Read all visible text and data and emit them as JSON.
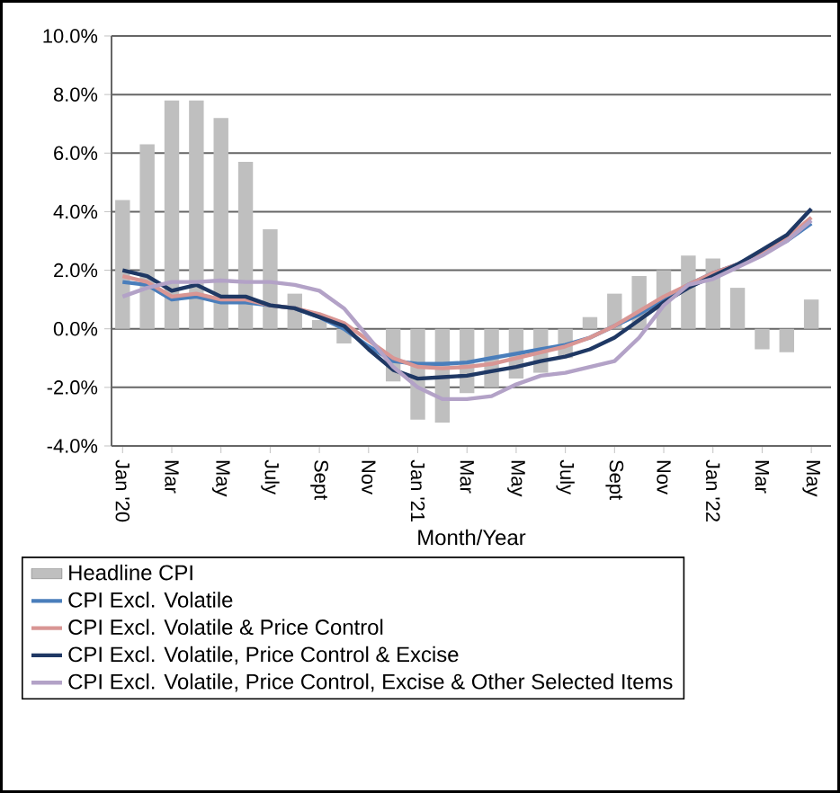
{
  "chart_data": {
    "type": "bar",
    "xlabel": "Month/Year",
    "categories": [
      "Jan '20",
      null,
      "Mar",
      null,
      "May",
      null,
      "July",
      null,
      "Sept",
      null,
      "Nov",
      null,
      "Jan '21",
      null,
      "Mar",
      null,
      "May",
      null,
      "July",
      null,
      "Sept",
      null,
      "Nov",
      null,
      "Jan '22",
      null,
      "Mar",
      null,
      "May"
    ],
    "series": [
      {
        "name": "Headline CPI",
        "color": "#bfbfbf",
        "values": [
          4.4,
          6.3,
          7.8,
          7.8,
          7.2,
          5.7,
          3.4,
          1.2,
          0.3,
          -0.5,
          null,
          -1.8,
          -3.1,
          -3.2,
          -2.2,
          -2.0,
          -1.7,
          -1.5,
          -1.0,
          0.4,
          1.2,
          1.8,
          2.0,
          2.5,
          2.4,
          1.4,
          -0.7,
          -0.8,
          1.0
        ]
      },
      {
        "name": "CPI Excl. Volatile",
        "type": "line",
        "color": "#4a7ebb",
        "values": [
          1.6,
          1.5,
          1.0,
          1.1,
          0.9,
          0.9,
          0.8,
          0.7,
          0.4,
          0.0,
          -0.6,
          -1.1,
          -1.2,
          -1.2,
          -1.15,
          -1.0,
          -0.85,
          -0.7,
          -0.55,
          -0.3,
          0.1,
          0.5,
          1.0,
          1.5,
          1.9,
          2.2,
          2.6,
          3.0,
          3.6
        ]
      },
      {
        "name": "CPI Excl. Volatile & Price Control",
        "type": "line",
        "color": "#d99694",
        "values": [
          1.8,
          1.6,
          1.1,
          1.2,
          1.0,
          1.0,
          0.8,
          0.7,
          0.5,
          0.2,
          -0.4,
          -1.0,
          -1.3,
          -1.35,
          -1.3,
          -1.2,
          -1.0,
          -0.8,
          -0.6,
          -0.3,
          0.1,
          0.6,
          1.1,
          1.5,
          1.9,
          2.2,
          2.6,
          3.1,
          3.8
        ]
      },
      {
        "name": "CPI Excl. Volatile, Price Control & Excise",
        "type": "line",
        "color": "#1f3864",
        "values": [
          2.0,
          1.8,
          1.3,
          1.5,
          1.1,
          1.1,
          0.8,
          0.7,
          0.4,
          0.1,
          -0.7,
          -1.4,
          -1.7,
          -1.65,
          -1.6,
          -1.45,
          -1.3,
          -1.1,
          -0.95,
          -0.7,
          -0.3,
          0.3,
          0.9,
          1.4,
          1.8,
          2.2,
          2.7,
          3.2,
          4.1
        ]
      },
      {
        "name": "CPI Excl. Volatile, Price Control, Excise & Other Selected Items",
        "type": "line",
        "color": "#b3a2c7",
        "values": [
          1.1,
          1.4,
          1.6,
          1.6,
          1.65,
          1.6,
          1.6,
          1.5,
          1.3,
          0.7,
          -0.3,
          -1.3,
          -2.0,
          -2.4,
          -2.4,
          -2.3,
          -1.9,
          -1.6,
          -1.5,
          -1.3,
          -1.1,
          -0.3,
          0.8,
          1.5,
          1.7,
          2.1,
          2.5,
          3.0,
          3.7
        ]
      }
    ],
    "ylim": [
      -4,
      10
    ],
    "yticks": [
      {
        "value": -4,
        "label": "-4.0%"
      },
      {
        "value": -2,
        "label": "-2.0%"
      },
      {
        "value": 0,
        "label": "0.0%"
      },
      {
        "value": 2,
        "label": "2.0%"
      },
      {
        "value": 4,
        "label": "4.0%"
      },
      {
        "value": 6,
        "label": "6.0%"
      },
      {
        "value": 8,
        "label": "8.0%"
      },
      {
        "value": 10,
        "label": "10.0%"
      }
    ],
    "grid": "y",
    "legend": "bottom"
  }
}
